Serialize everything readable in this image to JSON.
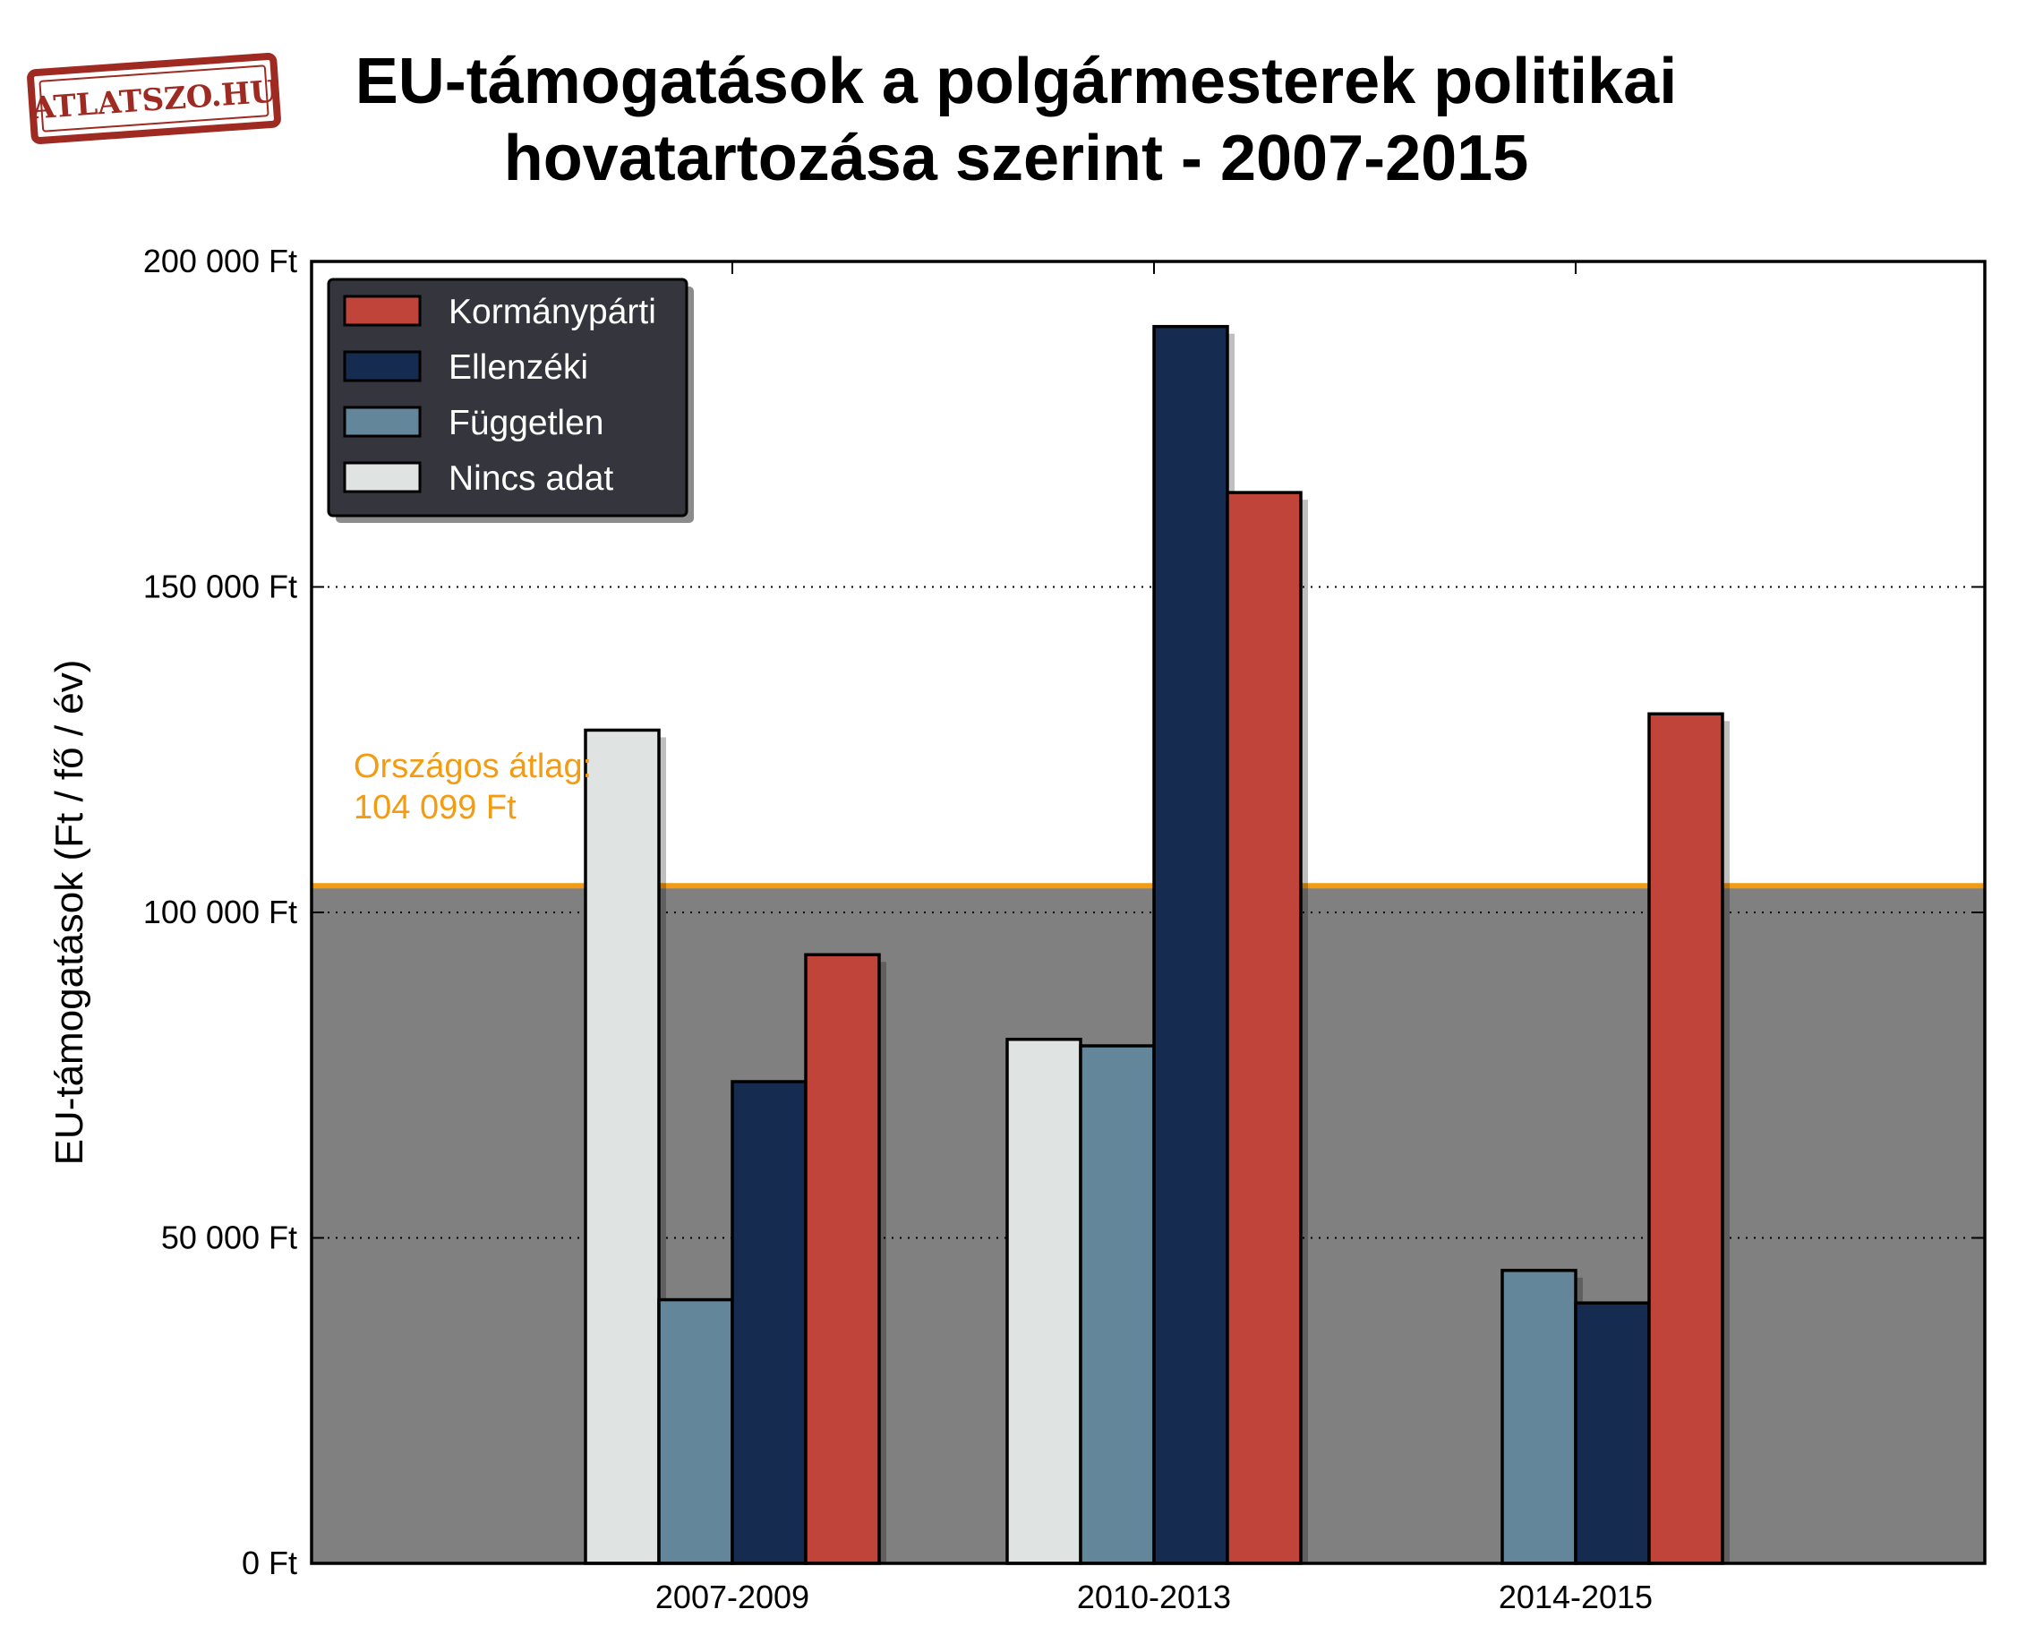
{
  "logo": {
    "text": "ATLATSZO.HU",
    "color": "#9e2a22"
  },
  "title": {
    "line1": "EU-támogatások a polgármesterek politikai",
    "line2": "hovatartozása szerint - 2007-2015"
  },
  "note": {
    "line1": "Országos átlag:",
    "line2": "104 099 Ft",
    "color": "#f39c12"
  },
  "chart_data": {
    "type": "bar",
    "categories": [
      "2007-2009",
      "2010-2013",
      "2014-2015"
    ],
    "series": [
      {
        "name": "Nincs adat",
        "color": "#dfe4e3",
        "values": [
          128000,
          80500,
          null
        ]
      },
      {
        "name": "Független",
        "color": "#63869b",
        "values": [
          40500,
          79500,
          45000
        ]
      },
      {
        "name": "Ellenzéki",
        "color": "#152b4f",
        "values": [
          74000,
          190000,
          40000
        ]
      },
      {
        "name": "Kormánypárti",
        "color": "#c0443a",
        "values": [
          93500,
          164500,
          130500
        ]
      }
    ],
    "legend_order": [
      "Kormánypárti",
      "Ellenzéki",
      "Független",
      "Nincs adat"
    ],
    "ylabel": "EU-támogatások (Ft / fő / év)",
    "xlabel": "",
    "ylim": [
      0,
      200000
    ],
    "yticks": [
      {
        "value": 0,
        "label": "0 Ft"
      },
      {
        "value": 50000,
        "label": "50 000 Ft"
      },
      {
        "value": 100000,
        "label": "100 000 Ft"
      },
      {
        "value": 150000,
        "label": "150 000 Ft"
      },
      {
        "value": 200000,
        "label": "200 000 Ft"
      }
    ],
    "reference_line": {
      "value": 104099,
      "color": "#f39c12"
    },
    "below_reference_fill": "#808080",
    "legend": {
      "position": "top-left",
      "background": "#35353d"
    },
    "grid": "horizontal dotted"
  }
}
